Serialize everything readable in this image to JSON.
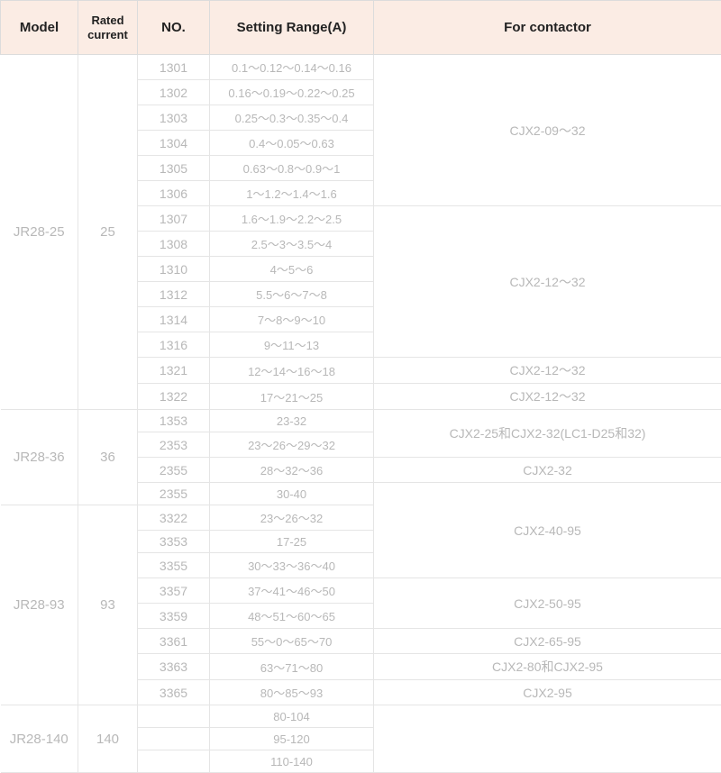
{
  "headers": {
    "model": "Model",
    "rated": "Rated current",
    "no": "NO.",
    "setting": "Setting Range(A)",
    "contactor": "For contactor"
  },
  "cells": {
    "m1": "JR28-25",
    "r1": "25",
    "m2": "JR28-36",
    "r2": "36",
    "m3": "JR28-93",
    "r3": "93",
    "m4": "JR28-140",
    "r4": "140",
    "n1": "1301",
    "s1": "0.1～0.12～0.14～0.16",
    "n2": "1302",
    "s2": "0.16～0.19～0.22～0.25",
    "n3": "1303",
    "s3": "0.25～0.3～0.35～0.4",
    "n4": "1304",
    "s4": "0.4～0.05～0.63",
    "n5": "1305",
    "s5": "0.63～0.8～0.9～1",
    "n6": "1306",
    "s6": "1～1.2～1.4～1.6",
    "n7": "1307",
    "s7": "1.6～1.9～2.2～2.5",
    "n8": "1308",
    "s8": "2.5～3～3.5～4",
    "n9": "1310",
    "s9": "4～5～6",
    "n10": "1312",
    "s10": "5.5～6～7～8",
    "n11": "1314",
    "s11": "7～8～9～10",
    "n12": "1316",
    "s12": "9～11～13",
    "n13": "1321",
    "s13": "12～14～16～18",
    "n14": "1322",
    "s14": "17～21～25",
    "n15": "1353",
    "s15": "23-32",
    "n16": "2353",
    "s16": "23～26～29～32",
    "n17": "2355",
    "s17": "28～32～36",
    "n18": "2355",
    "s18": "30-40",
    "n19": "3322",
    "s19": "23～26～32",
    "n20": "3353",
    "s20": "17-25",
    "n21": "3355",
    "s21": "30～33～36～40",
    "n22": "3357",
    "s22": "37～41～46～50",
    "n23": "3359",
    "s23": "48～51～60～65",
    "n24": "3361",
    "s24": "55～0～65～70",
    "n25": "3363",
    "s25": "63～71～80",
    "n26": "3365",
    "s26": "80～85～93",
    "n27": "",
    "s27": "80-104",
    "n28": "",
    "s28": "95-120",
    "n29": "",
    "s29": "110-140",
    "c1": "CJX2-09～32",
    "c2": "CJX2-12～32",
    "c3": "CJX2-12～32",
    "c4": "CJX2-12～32",
    "c5": "CJX2-25和CJX2-32(LC1-D25和32)",
    "c6": "CJX2-32",
    "c7": "CJX2-40-95",
    "c8": "CJX2-50-95",
    "c9": "CJX2-65-95",
    "c10": "CJX2-80和CJX2-95",
    "c11": "CJX2-95",
    "c12": ""
  }
}
